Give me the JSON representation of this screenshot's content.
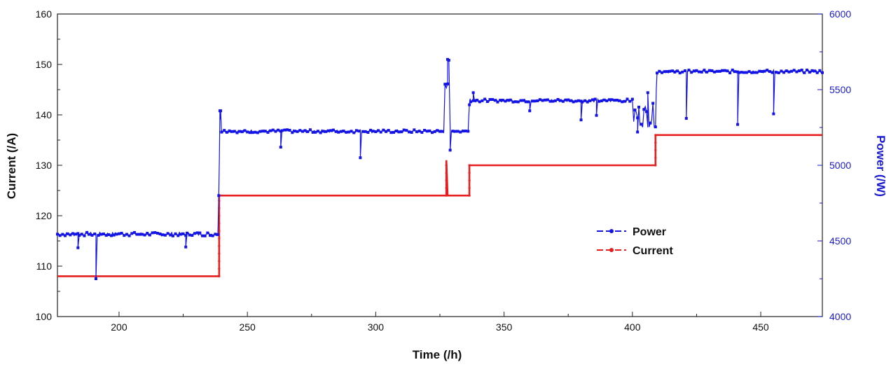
{
  "chart_data": {
    "type": "line",
    "xlabel": "Time (/h)",
    "ylabel": "Current (/A)",
    "y2label": "Power (/W)",
    "xlim": [
      176,
      474
    ],
    "ylim": [
      100,
      160
    ],
    "y2lim": [
      4000,
      6000
    ],
    "x_ticks": [
      200,
      250,
      300,
      350,
      400,
      450
    ],
    "y_ticks": [
      100,
      110,
      120,
      130,
      140,
      150,
      160
    ],
    "y2_ticks": [
      4000,
      4500,
      5000,
      5500,
      6000
    ],
    "grid": false,
    "legend_position": "center-right",
    "colors": {
      "power": "#1414e6",
      "current": "#e61e1e",
      "axis_right": "#1a1ad0"
    },
    "series": [
      {
        "name": "Power",
        "axis": "right",
        "color": "#1414e6",
        "segments": [
          {
            "x_start": 176,
            "x_end": 238.5,
            "level": 4545,
            "noise": 12
          },
          {
            "x_start": 240,
            "x_end": 336,
            "level": 5225,
            "noise": 10
          },
          {
            "x_start": 337,
            "x_end": 400,
            "level": 5428,
            "noise": 10
          },
          {
            "x_start": 410,
            "x_end": 474,
            "level": 5620,
            "noise": 10
          }
        ],
        "spikes": [
          {
            "x": 191,
            "y": 4250
          },
          {
            "x": 184,
            "y": 4455
          },
          {
            "x": 226,
            "y": 4460
          },
          {
            "x": 239.3,
            "y": 5360
          },
          {
            "x": 263,
            "y": 5120
          },
          {
            "x": 294,
            "y": 5050
          },
          {
            "x": 328,
            "y": 5700
          },
          {
            "x": 329,
            "y": 5100
          },
          {
            "x": 338,
            "y": 5480
          },
          {
            "x": 360,
            "y": 5360
          },
          {
            "x": 380,
            "y": 5300
          },
          {
            "x": 386,
            "y": 5330
          },
          {
            "x": 402,
            "y": 5220
          },
          {
            "x": 406,
            "y": 5480
          },
          {
            "x": 421,
            "y": 5310
          },
          {
            "x": 441,
            "y": 5270
          },
          {
            "x": 455,
            "y": 5340
          }
        ]
      },
      {
        "name": "Current",
        "axis": "left",
        "color": "#e61e1e",
        "points": [
          [
            176,
            108
          ],
          [
            239,
            108
          ],
          [
            239,
            124
          ],
          [
            327.5,
            124
          ],
          [
            327.5,
            126
          ],
          [
            327.5,
            131
          ],
          [
            328,
            124
          ],
          [
            336.5,
            124
          ],
          [
            336.5,
            130
          ],
          [
            409,
            130
          ],
          [
            409,
            136
          ],
          [
            474,
            136
          ]
        ]
      }
    ]
  }
}
